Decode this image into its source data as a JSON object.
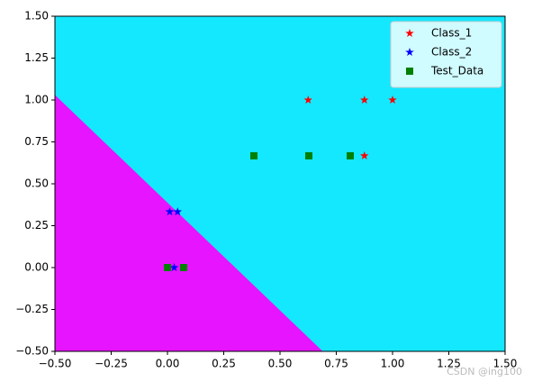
{
  "chart_data": {
    "type": "scatter",
    "xlim": [
      -0.5,
      1.5
    ],
    "ylim": [
      -0.5,
      1.5
    ],
    "xticks": [
      {
        "value": -0.5,
        "label": "−0.50"
      },
      {
        "value": -0.25,
        "label": "−0.25"
      },
      {
        "value": 0,
        "label": "0.00"
      },
      {
        "value": 0.25,
        "label": "0.25"
      },
      {
        "value": 0.5,
        "label": "0.50"
      },
      {
        "value": 0.75,
        "label": "0.75"
      },
      {
        "value": 1,
        "label": "1.00"
      },
      {
        "value": 1.25,
        "label": "1.25"
      },
      {
        "value": 1.5,
        "label": "1.50"
      }
    ],
    "yticks": [
      {
        "value": -0.5,
        "label": "−0.50"
      },
      {
        "value": -0.25,
        "label": "−0.25"
      },
      {
        "value": 0,
        "label": "0.00"
      },
      {
        "value": 0.25,
        "label": "0.25"
      },
      {
        "value": 0.5,
        "label": "0.50"
      },
      {
        "value": 0.75,
        "label": "0.75"
      },
      {
        "value": 1,
        "label": "1.00"
      },
      {
        "value": 1.25,
        "label": "1.25"
      },
      {
        "value": 1.5,
        "label": "1.50"
      }
    ],
    "background_color": "#14e8ff",
    "region": {
      "color": "#e614ff",
      "x": [
        -0.5,
        0.69
      ],
      "y": [
        1.03,
        -0.5
      ]
    },
    "legend": "upper right",
    "series": [
      {
        "name": "Class_1",
        "color": "#ff0000",
        "marker": "star",
        "x": [
          0.625,
          0.875,
          1.0,
          0.875
        ],
        "values": [
          1.0,
          1.0,
          1.0,
          0.667
        ]
      },
      {
        "name": "Class_2",
        "color": "#0000ff",
        "marker": "star",
        "x": [
          0.01,
          0.045,
          0.03
        ],
        "values": [
          0.333,
          0.333,
          0.0
        ]
      },
      {
        "name": "Test_Data",
        "color": "#008000",
        "marker": "square",
        "x": [
          0.0,
          0.072,
          0.384,
          0.628,
          0.812
        ],
        "values": [
          0.0,
          0.0,
          0.667,
          0.667,
          0.667
        ]
      }
    ],
    "watermark": "CSDN @ing100"
  }
}
